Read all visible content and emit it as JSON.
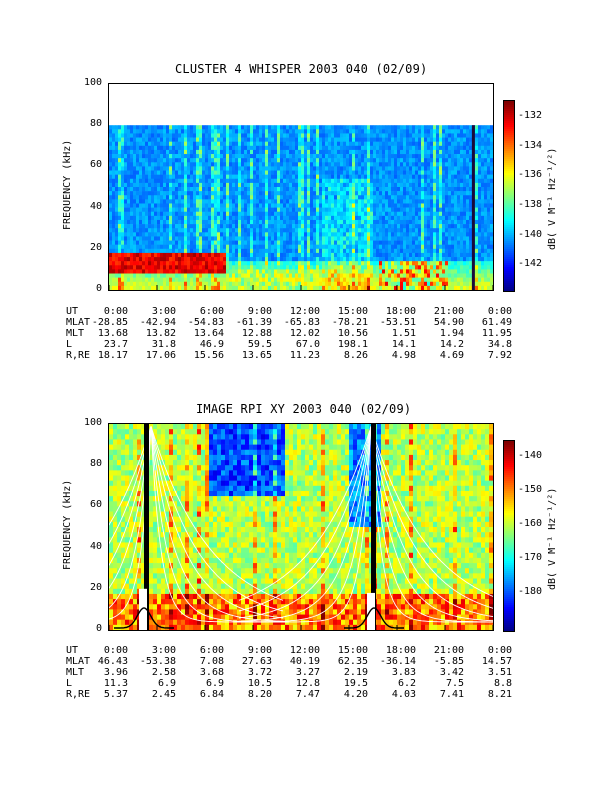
{
  "panels": [
    {
      "title": "CLUSTER 4 WHISPER 2003 040 (02/09)",
      "ylabel": "FREQUENCY (kHz)",
      "yticks": [
        "0",
        "20",
        "40",
        "60",
        "80",
        "100"
      ],
      "cbar_label": "dB( V M⁻¹ Hz⁻¹/²)",
      "cbar_ticks": [
        "-132",
        "-134",
        "-136",
        "-138",
        "-140",
        "-142"
      ],
      "ephemeris": [
        {
          "label": "UT",
          "values": [
            "0:00",
            "3:00",
            "6:00",
            "9:00",
            "12:00",
            "15:00",
            "18:00",
            "21:00",
            "0:00"
          ]
        },
        {
          "label": "MLAT",
          "values": [
            "-28.85",
            "-42.94",
            "-54.83",
            "-61.39",
            "-65.83",
            "-78.21",
            "-53.51",
            "54.90",
            "61.49"
          ]
        },
        {
          "label": "MLT",
          "values": [
            "13.68",
            "13.82",
            "13.64",
            "12.88",
            "12.02",
            "10.56",
            "1.51",
            "1.94",
            "11.95"
          ]
        },
        {
          "label": "L",
          "values": [
            "23.7",
            "31.8",
            "46.9",
            "59.5",
            "67.0",
            "198.1",
            "14.1",
            "14.2",
            "34.8"
          ]
        },
        {
          "label": "R,RE",
          "values": [
            "18.17",
            "17.06",
            "15.56",
            "13.65",
            "11.23",
            "8.26",
            "4.98",
            "4.69",
            "7.92"
          ]
        }
      ]
    },
    {
      "title": "IMAGE RPI XY 2003 040 (02/09)",
      "ylabel": "FREQUENCY (kHz)",
      "yticks": [
        "0",
        "20",
        "40",
        "60",
        "80",
        "100"
      ],
      "cbar_label": "dB( V M⁻¹ Hz⁻¹/²)",
      "cbar_ticks": [
        "-140",
        "-150",
        "-160",
        "-170",
        "-180"
      ],
      "ephemeris": [
        {
          "label": "UT",
          "values": [
            "0:00",
            "3:00",
            "6:00",
            "9:00",
            "12:00",
            "15:00",
            "18:00",
            "21:00",
            "0:00"
          ]
        },
        {
          "label": "MLAT",
          "values": [
            "46.43",
            "-53.38",
            "7.08",
            "27.63",
            "40.19",
            "62.35",
            "-36.14",
            "-5.85",
            "14.57"
          ]
        },
        {
          "label": "MLT",
          "values": [
            "3.96",
            "2.58",
            "3.68",
            "3.72",
            "3.27",
            "2.19",
            "3.83",
            "3.42",
            "3.51"
          ]
        },
        {
          "label": "L",
          "values": [
            "11.3",
            "6.9",
            "6.9",
            "10.5",
            "12.8",
            "19.5",
            "6.2",
            "7.5",
            "8.8"
          ]
        },
        {
          "label": "R,RE",
          "values": [
            "5.37",
            "2.45",
            "6.84",
            "8.20",
            "7.47",
            "4.20",
            "4.03",
            "7.41",
            "8.21"
          ]
        }
      ]
    }
  ],
  "chart_data": [
    {
      "type": "heatmap",
      "title": "CLUSTER 4 WHISPER 2003 040 (02/09)",
      "ylabel": "FREQUENCY (kHz)",
      "xlabel": "UT",
      "x": [
        "0:00",
        "3:00",
        "6:00",
        "9:00",
        "12:00",
        "15:00",
        "18:00",
        "21:00",
        "0:00"
      ],
      "ylim": [
        0,
        100
      ],
      "data_ylim": [
        0,
        80
      ],
      "colorbar_range": [
        -143,
        -131
      ],
      "colorbar_label": "dB( V M⁻¹ Hz⁻¹/²)",
      "colors": {
        "high": "#e00000",
        "mid": "#00c0c0",
        "low": "#1010a0"
      }
    },
    {
      "type": "heatmap",
      "title": "IMAGE RPI XY 2003 040 (02/09)",
      "ylabel": "FREQUENCY (kHz)",
      "xlabel": "UT",
      "x": [
        "0:00",
        "3:00",
        "6:00",
        "9:00",
        "12:00",
        "15:00",
        "18:00",
        "21:00",
        "0:00"
      ],
      "ylim": [
        0,
        100
      ],
      "colorbar_range": [
        -185,
        -135
      ],
      "colorbar_label": "dB( V M⁻¹ Hz⁻¹/²)",
      "colors": {
        "high": "#e00000",
        "mid": "#40d040",
        "low": "#1010a0"
      }
    }
  ]
}
